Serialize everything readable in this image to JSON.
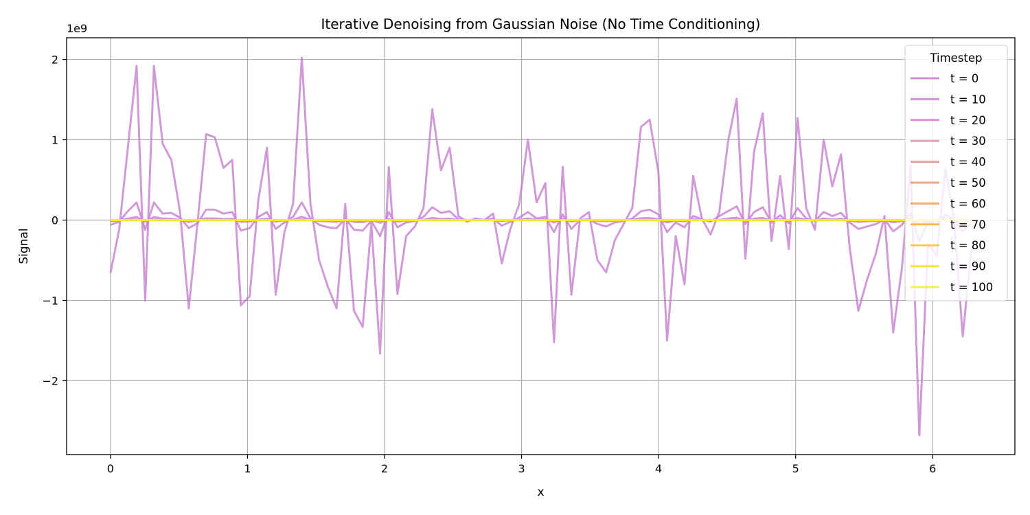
{
  "chart_data": {
    "type": "line",
    "title": "Iterative Denoising from Gaussian Noise (No Time Conditioning)",
    "xlabel": "x",
    "ylabel": "Signal",
    "offset_text": "1e9",
    "scale": 1000000000,
    "xlim": [
      -0.32,
      6.6
    ],
    "ylim": [
      -2.92,
      2.27
    ],
    "xticks": [
      0,
      1,
      2,
      3,
      4,
      5,
      6
    ],
    "yticks": [
      -2,
      -1,
      0,
      1,
      2
    ],
    "ytick_labels": [
      "−2",
      "−1",
      "0",
      "1",
      "2"
    ],
    "grid": true,
    "legend": {
      "title": "Timestep",
      "placement": "top-right"
    },
    "x_step": 0.0634665,
    "series": [
      {
        "name": "t = 0",
        "color": "#c77fd0",
        "values": [
          -0.66,
          -0.12,
          0.9,
          1.92,
          -1.0,
          1.92,
          0.95,
          0.75,
          0.1,
          -1.1,
          -0.05,
          1.07,
          1.03,
          0.65,
          0.75,
          -1.06,
          -0.95,
          0.25,
          0.9,
          -0.93,
          -0.15,
          0.2,
          2.02,
          0.2,
          -0.5,
          -0.83,
          -1.1,
          0.2,
          -1.13,
          -1.33,
          -0.05,
          -1.66,
          0.66,
          -0.92,
          -0.2,
          -0.08,
          0.15,
          1.38,
          0.62,
          0.9,
          0.05,
          -0.02,
          0.02,
          0.0,
          0.08,
          -0.54,
          -0.1,
          0.2,
          1.0,
          0.22,
          0.46,
          -1.52,
          0.66,
          -0.93,
          0.02,
          0.1,
          -0.5,
          -0.65,
          -0.25,
          -0.05,
          0.15,
          1.16,
          1.25,
          0.6,
          -1.5,
          -0.2,
          -0.8,
          0.55,
          0.02,
          -0.18,
          0.1,
          0.97,
          1.51,
          -0.48,
          0.85,
          1.33,
          -0.26,
          0.55,
          -0.36,
          1.27,
          0.15,
          -0.12,
          1.0,
          0.42,
          0.82,
          -0.35,
          -1.13,
          -0.74,
          -0.42,
          0.05,
          -1.4,
          -0.6,
          0.68,
          -2.68,
          -0.3,
          -0.45,
          0.64,
          0.0,
          -1.45,
          -0.35
        ]
      },
      {
        "name": "t = 10",
        "color": "#c77fd0",
        "values": [
          -0.06,
          -0.02,
          0.11,
          0.22,
          -0.12,
          0.22,
          0.08,
          0.09,
          0.03,
          -0.1,
          -0.04,
          0.13,
          0.13,
          0.08,
          0.1,
          -0.13,
          -0.1,
          0.04,
          0.1,
          -0.11,
          -0.03,
          0.04,
          0.22,
          0.02,
          -0.06,
          -0.09,
          -0.1,
          0.02,
          -0.12,
          -0.13,
          -0.01,
          -0.2,
          0.1,
          -0.09,
          -0.03,
          -0.01,
          0.04,
          0.16,
          0.09,
          0.11,
          0.01,
          0.0,
          0.0,
          0.0,
          0.02,
          -0.07,
          -0.02,
          0.03,
          0.1,
          0.02,
          0.04,
          -0.15,
          0.07,
          -0.11,
          0.0,
          0.01,
          -0.05,
          -0.08,
          -0.03,
          -0.01,
          0.02,
          0.11,
          0.13,
          0.07,
          -0.15,
          -0.03,
          -0.09,
          0.05,
          0.01,
          -0.02,
          0.05,
          0.11,
          0.17,
          -0.05,
          0.1,
          0.16,
          -0.03,
          0.06,
          -0.04,
          0.15,
          0.02,
          -0.01,
          0.1,
          0.05,
          0.09,
          -0.03,
          -0.11,
          -0.08,
          -0.05,
          0.01,
          -0.14,
          -0.06,
          0.08,
          -0.26,
          -0.03,
          -0.05,
          0.07,
          0.0,
          -0.14,
          -0.04
        ]
      },
      {
        "name": "t = 20",
        "color": "#cc80c3",
        "amp": 0.02
      },
      {
        "name": "t = 30",
        "color": "#dc8fb0",
        "amp": 0.004
      },
      {
        "name": "t = 40",
        "color": "#ec8e92",
        "amp": 0.0
      },
      {
        "name": "t = 50",
        "color": "#f49572",
        "amp": 0.0
      },
      {
        "name": "t = 60",
        "color": "#f8a150",
        "amp": 0.0
      },
      {
        "name": "t = 70",
        "color": "#f8b038",
        "amp": 0.0
      },
      {
        "name": "t = 80",
        "color": "#f7c43b",
        "amp": 0.0
      },
      {
        "name": "t = 90",
        "color": "#f5da2e",
        "amp": 0.0
      },
      {
        "name": "t = 100",
        "color": "#f4ee2a",
        "amp": 0.0
      }
    ]
  }
}
